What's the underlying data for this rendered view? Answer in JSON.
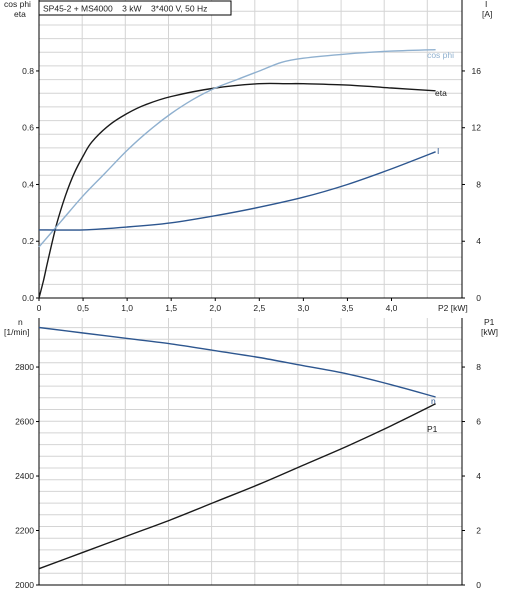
{
  "colors": {
    "grid": "#d4d4d4",
    "axis": "#000000",
    "eta": "#1a1a1a",
    "cos_phi": "#8fb0cf",
    "current": "#2d568f",
    "speed": "#2d568f",
    "p1": "#1a1a1a"
  },
  "chart_data": [
    {
      "type": "line",
      "title": "SP45-2 + MS4000    3 kW    3*400 V, 50 Hz",
      "left_axis": {
        "label_lines": [
          "cos phi",
          "eta"
        ],
        "ticks": [
          "0.0",
          "0.2",
          "0.4",
          "0.6",
          "0.8"
        ],
        "ylim": [
          0,
          1.05
        ]
      },
      "right_axis": {
        "label_lines": [
          "I",
          "[A]"
        ],
        "ticks": [
          "0",
          "4",
          "8",
          "12",
          "16"
        ],
        "ylim": [
          0,
          21
        ]
      },
      "x_axis": {
        "label": "P2 [kW]",
        "ticks": [
          "0",
          "0,5",
          "1,0",
          "1,5",
          "2,0",
          "2,5",
          "3,0",
          "3,5",
          "4,0"
        ],
        "xlim": [
          0,
          4.8
        ]
      },
      "grid": true,
      "series": [
        {
          "name": "eta",
          "axis": "left",
          "x": [
            0,
            0.05,
            0.1,
            0.2,
            0.3,
            0.4,
            0.5,
            0.6,
            0.8,
            1.0,
            1.2,
            1.5,
            2.0,
            2.5,
            2.8,
            3.0,
            3.5,
            4.0,
            4.5
          ],
          "y": [
            0,
            0.06,
            0.13,
            0.26,
            0.36,
            0.44,
            0.5,
            0.55,
            0.61,
            0.65,
            0.68,
            0.71,
            0.74,
            0.755,
            0.755,
            0.755,
            0.75,
            0.74,
            0.73
          ]
        },
        {
          "name": "cos phi",
          "axis": "left",
          "x": [
            0,
            0.25,
            0.5,
            0.75,
            1.0,
            1.25,
            1.5,
            1.75,
            2.0,
            2.25,
            2.5,
            2.75,
            3.0,
            3.5,
            4.0,
            4.5
          ],
          "y": [
            0.18,
            0.27,
            0.36,
            0.44,
            0.52,
            0.59,
            0.65,
            0.7,
            0.74,
            0.77,
            0.8,
            0.83,
            0.845,
            0.86,
            0.87,
            0.875
          ]
        },
        {
          "name": "I",
          "axis": "right",
          "x": [
            0,
            0.5,
            1.0,
            1.5,
            2.0,
            2.5,
            3.0,
            3.5,
            4.0,
            4.5
          ],
          "y": [
            4.8,
            4.8,
            5.0,
            5.3,
            5.8,
            6.4,
            7.1,
            8.0,
            9.1,
            10.3
          ]
        }
      ]
    },
    {
      "type": "line",
      "left_axis": {
        "label_lines": [
          "n",
          "[1/min]"
        ],
        "ticks": [
          "2000",
          "2200",
          "2400",
          "2600",
          "2800"
        ],
        "ylim": [
          2000,
          2980
        ]
      },
      "right_axis": {
        "label_lines": [
          "P1",
          "[kW]"
        ],
        "ticks": [
          "0",
          "2",
          "4",
          "6",
          "8"
        ],
        "ylim": [
          0,
          9.8
        ]
      },
      "x_axis": {
        "xlim": [
          0,
          4.8
        ]
      },
      "grid": true,
      "series": [
        {
          "name": "n",
          "axis": "left",
          "x": [
            0,
            0.5,
            1.0,
            1.5,
            2.0,
            2.5,
            3.0,
            3.5,
            4.0,
            4.5
          ],
          "y": [
            2945,
            2925,
            2905,
            2885,
            2860,
            2835,
            2805,
            2775,
            2735,
            2690
          ]
        },
        {
          "name": "P1",
          "axis": "right",
          "x": [
            0,
            0.5,
            1.0,
            1.5,
            2.0,
            2.5,
            3.0,
            3.5,
            4.0,
            4.5
          ],
          "y": [
            0.6,
            1.2,
            1.8,
            2.4,
            3.05,
            3.7,
            4.4,
            5.1,
            5.85,
            6.65
          ]
        }
      ]
    }
  ]
}
